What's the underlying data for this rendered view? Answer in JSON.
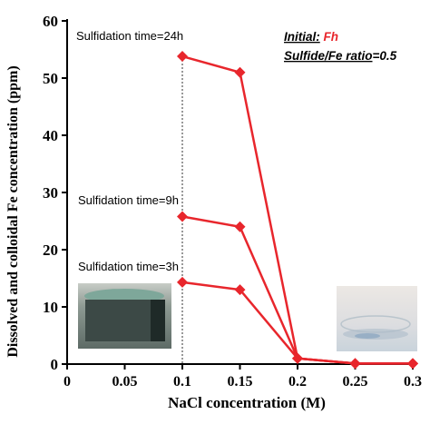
{
  "chart_data": {
    "type": "line",
    "xlabel": "NaCl concentration (M)",
    "ylabel": "Dissolved and colloidal  Fe concentration (ppm)",
    "xlim": [
      0,
      0.3
    ],
    "ylim": [
      0,
      60
    ],
    "x_ticks": [
      0,
      0.05,
      0.1,
      0.15,
      0.2,
      0.25,
      0.3
    ],
    "x_tick_labels": [
      "0",
      "0.05",
      "0.1",
      "0.15",
      "0.2",
      "0.25",
      "0.3"
    ],
    "y_ticks": [
      0,
      10,
      20,
      30,
      40,
      50,
      60
    ],
    "y_tick_labels": [
      "0",
      "10",
      "20",
      "30",
      "40",
      "50",
      "60"
    ],
    "grid": false,
    "reference_line_x": 0.1,
    "series": [
      {
        "name": "Sulfidation time=24h",
        "x": [
          0.1,
          0.15,
          0.2,
          0.25,
          0.3
        ],
        "y": [
          53.8,
          51.0,
          1.0,
          0.1,
          0.1
        ]
      },
      {
        "name": "Sulfidation time=9h",
        "x": [
          0.1,
          0.15,
          0.2,
          0.25,
          0.3
        ],
        "y": [
          25.8,
          24.0,
          1.0,
          0.1,
          0.1
        ]
      },
      {
        "name": "Sulfidation time=3h",
        "x": [
          0.1,
          0.15,
          0.2,
          0.25,
          0.3
        ],
        "y": [
          14.3,
          13.0,
          1.0,
          0.1,
          0.1
        ]
      }
    ],
    "annotation": {
      "initial_label": "Initial:",
      "initial_value": "Fh",
      "ratio_label": "Sulfide/Fe ratio",
      "ratio_value": "=0.5"
    },
    "colors": {
      "series": "#e8262c",
      "axis": "#000000",
      "reference_line": "#333333",
      "highlight_text": "#e8262c"
    }
  }
}
